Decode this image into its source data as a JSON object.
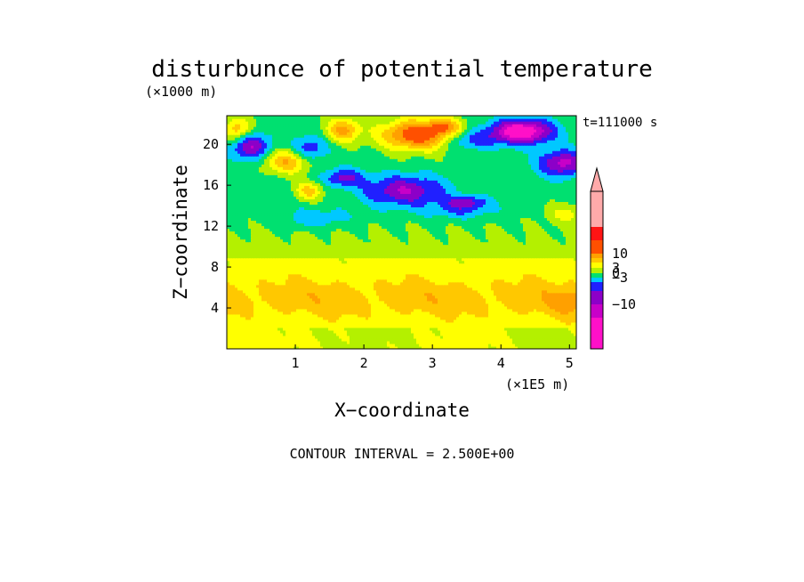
{
  "chart_data": {
    "type": "heatmap",
    "title": "disturbunce of potential temperature",
    "time_label": "t=111000 s",
    "xlabel": "X−coordinate",
    "ylabel": "Z−coordinate",
    "x_unit": "(×1E5 m)",
    "y_unit": "(×1000 m)",
    "footer": "CONTOUR INTERVAL = 2.500E+00",
    "xlim": [
      0,
      5.1
    ],
    "ylim": [
      0,
      22.8
    ],
    "x_ticks": [
      "1",
      "2",
      "3",
      "4",
      "5"
    ],
    "y_ticks": [
      "4",
      "8",
      "12",
      "16",
      "20"
    ],
    "colorbar_labels": [
      "10",
      "3",
      "0",
      "−3",
      "−10"
    ],
    "levels": [
      -12.5,
      -10,
      -7.5,
      -5,
      -2.5,
      0,
      2.5,
      5,
      7.5,
      10
    ],
    "bin_colors": [
      "#ff10c8",
      "#c800c8",
      "#8c00c8",
      "#2020ff",
      "#00c8ff",
      "#00e070",
      "#b4f000",
      "#ffff00",
      "#ffc800",
      "#ffa000",
      "#ff5000",
      "#ff1414",
      "#ffaaaa"
    ],
    "grid": false,
    "legend": "colorbar right",
    "field_description": "near-surface disturbance about 2 to 5; warm band peaking about 6.5 near z=5; around 0 near z=11 to 13; cold (-3 to -10) between z=14 and 19; strong warm and cold cells above z=18"
  }
}
